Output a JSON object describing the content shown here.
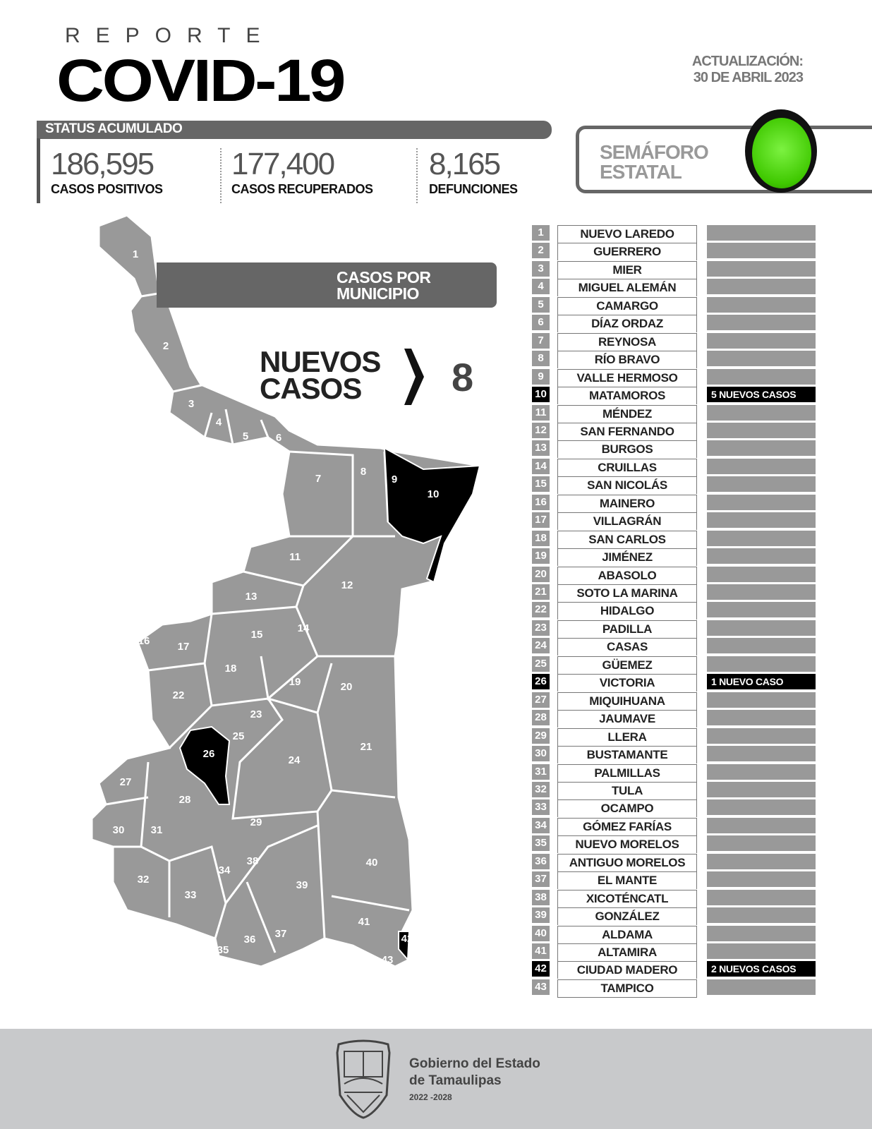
{
  "header": {
    "reporte": "REPORTE",
    "title": "COVID-19",
    "update_label": "ACTUALIZACIÓN:",
    "update_date": "30 DE ABRIL 2023"
  },
  "status": {
    "label": "STATUS ACUMULADO",
    "positivos": {
      "value": "186,595",
      "label": "CASOS POSITIVOS"
    },
    "recuperados": {
      "value": "177,400",
      "label": "CASOS RECUPERADOS"
    },
    "defunciones": {
      "value": "8,165",
      "label": "DEFUNCIONES"
    }
  },
  "semaforo": {
    "label_1": "SEMÁFORO",
    "label_2": "ESTATAL",
    "color": "#3fc800",
    "state": "green"
  },
  "map": {
    "banner_1": "CASOS POR",
    "banner_2": "MUNICIPIO",
    "nuevos_1": "NUEVOS",
    "nuevos_2": "CASOS",
    "nuevos_total": "8",
    "highlight_color": "#000000",
    "base_color": "#999999"
  },
  "municipios": [
    {
      "n": "1",
      "name": "NUEVO LAREDO",
      "cases": ""
    },
    {
      "n": "2",
      "name": "GUERRERO",
      "cases": ""
    },
    {
      "n": "3",
      "name": "MIER",
      "cases": ""
    },
    {
      "n": "4",
      "name": "MIGUEL ALEMÁN",
      "cases": ""
    },
    {
      "n": "5",
      "name": "CAMARGO",
      "cases": ""
    },
    {
      "n": "6",
      "name": "DÍAZ ORDAZ",
      "cases": ""
    },
    {
      "n": "7",
      "name": "REYNOSA",
      "cases": ""
    },
    {
      "n": "8",
      "name": "RÍO BRAVO",
      "cases": ""
    },
    {
      "n": "9",
      "name": "VALLE HERMOSO",
      "cases": ""
    },
    {
      "n": "10",
      "name": "MATAMOROS",
      "cases": "5 NUEVOS CASOS"
    },
    {
      "n": "11",
      "name": "MÉNDEZ",
      "cases": ""
    },
    {
      "n": "12",
      "name": "SAN FERNANDO",
      "cases": ""
    },
    {
      "n": "13",
      "name": "BURGOS",
      "cases": ""
    },
    {
      "n": "14",
      "name": "CRUILLAS",
      "cases": ""
    },
    {
      "n": "15",
      "name": "SAN NICOLÁS",
      "cases": ""
    },
    {
      "n": "16",
      "name": "MAINERO",
      "cases": ""
    },
    {
      "n": "17",
      "name": "VILLAGRÁN",
      "cases": ""
    },
    {
      "n": "18",
      "name": "SAN CARLOS",
      "cases": ""
    },
    {
      "n": "19",
      "name": "JIMÉNEZ",
      "cases": ""
    },
    {
      "n": "20",
      "name": "ABASOLO",
      "cases": ""
    },
    {
      "n": "21",
      "name": "SOTO LA MARINA",
      "cases": ""
    },
    {
      "n": "22",
      "name": "HIDALGO",
      "cases": ""
    },
    {
      "n": "23",
      "name": "PADILLA",
      "cases": ""
    },
    {
      "n": "24",
      "name": "CASAS",
      "cases": ""
    },
    {
      "n": "25",
      "name": "GÜEMEZ",
      "cases": ""
    },
    {
      "n": "26",
      "name": "VICTORIA",
      "cases": "1 NUEVO CASO"
    },
    {
      "n": "27",
      "name": "MIQUIHUANA",
      "cases": ""
    },
    {
      "n": "28",
      "name": "JAUMAVE",
      "cases": ""
    },
    {
      "n": "29",
      "name": "LLERA",
      "cases": ""
    },
    {
      "n": "30",
      "name": "BUSTAMANTE",
      "cases": ""
    },
    {
      "n": "31",
      "name": "PALMILLAS",
      "cases": ""
    },
    {
      "n": "32",
      "name": "TULA",
      "cases": ""
    },
    {
      "n": "33",
      "name": "OCAMPO",
      "cases": ""
    },
    {
      "n": "34",
      "name": "GÓMEZ FARÍAS",
      "cases": ""
    },
    {
      "n": "35",
      "name": "NUEVO MORELOS",
      "cases": ""
    },
    {
      "n": "36",
      "name": "ANTIGUO MORELOS",
      "cases": ""
    },
    {
      "n": "37",
      "name": "EL MANTE",
      "cases": ""
    },
    {
      "n": "38",
      "name": "XICOTÉNCATL",
      "cases": ""
    },
    {
      "n": "39",
      "name": "GONZÁLEZ",
      "cases": ""
    },
    {
      "n": "40",
      "name": "ALDAMA",
      "cases": ""
    },
    {
      "n": "41",
      "name": "ALTAMIRA",
      "cases": ""
    },
    {
      "n": "42",
      "name": "CIUDAD MADERO",
      "cases": "2 NUEVOS CASOS"
    },
    {
      "n": "43",
      "name": "TAMPICO",
      "cases": ""
    }
  ],
  "footer": {
    "org_1": "Gobierno del Estado",
    "org_2": "de Tamaulipas",
    "years": "2022 -2028",
    "seal_icon": "coat-of-arms"
  }
}
